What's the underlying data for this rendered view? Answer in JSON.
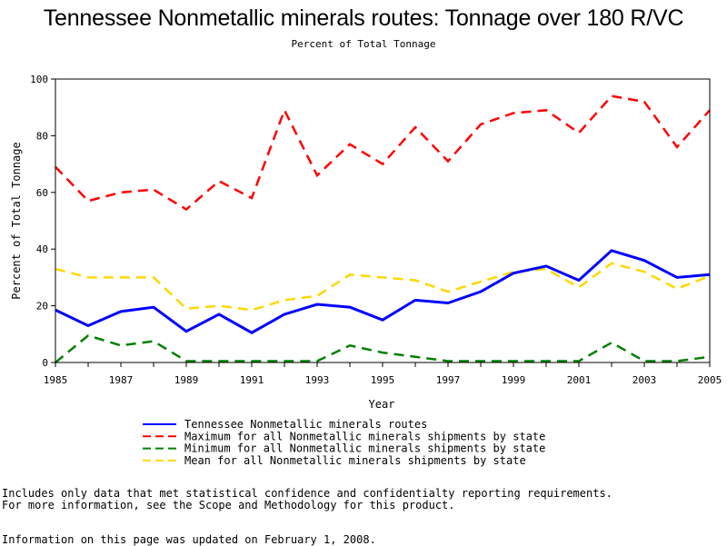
{
  "chart_data": {
    "type": "line",
    "title": "Tennessee Nonmetallic minerals routes: Tonnage over 180 R/VC",
    "subtitle": "Percent of Total Tonnage",
    "xlabel": "Year",
    "ylabel": "Percent of Total Tonnage",
    "x": [
      1985,
      1986,
      1987,
      1988,
      1989,
      1990,
      1991,
      1992,
      1993,
      1994,
      1995,
      1996,
      1997,
      1998,
      1999,
      2000,
      2001,
      2002,
      2003,
      2004,
      2005
    ],
    "xticks": [
      "1985",
      "1987",
      "1989",
      "1991",
      "1993",
      "1995",
      "1997",
      "1999",
      "2001",
      "2003",
      "2005"
    ],
    "yticks": [
      "0",
      "20",
      "40",
      "60",
      "80",
      "100"
    ],
    "xlim": [
      1985,
      2005
    ],
    "ylim": [
      0,
      100
    ],
    "grid": false,
    "legend_position": "bottom",
    "series": [
      {
        "name": "Tennessee Nonmetallic minerals routes",
        "color": "#0000ff",
        "style": "solid",
        "values": [
          18.5,
          13,
          18,
          19.5,
          11,
          17,
          10.5,
          17,
          20.5,
          19.5,
          15,
          22,
          21,
          25,
          31.5,
          34,
          29,
          39.5,
          36,
          30,
          31
        ]
      },
      {
        "name": "Maximum for all Nonmetallic minerals shipments by state",
        "color": "#ff0000",
        "style": "dashed",
        "values": [
          69,
          57,
          60,
          61,
          54,
          64,
          58,
          89,
          66,
          77,
          70,
          83,
          71,
          84,
          88,
          89,
          81,
          94,
          92,
          76,
          89
        ]
      },
      {
        "name": "Minimum for all Nonmetallic minerals shipments by state",
        "color": "#008000",
        "style": "dashed",
        "values": [
          0,
          9.5,
          6,
          7.5,
          0.5,
          0.5,
          0.5,
          0.5,
          0.5,
          6,
          3.5,
          2,
          0.5,
          0.5,
          0.5,
          0.5,
          0.5,
          7,
          0.5,
          0.5,
          2
        ]
      },
      {
        "name": "Mean for all Nonmetallic minerals shipments by state",
        "color": "#ffd700",
        "style": "dashed",
        "values": [
          33,
          30,
          30,
          30,
          19,
          20,
          18.5,
          22,
          23.5,
          31,
          30,
          29,
          25,
          28.5,
          32,
          33,
          26.5,
          35,
          32,
          26,
          30.5
        ]
      }
    ]
  },
  "footnotes": {
    "line1": "Includes only data that met statistical confidence and confidentialty reporting requirements.",
    "line2": "For more information, see the Scope and Methodology for this product.",
    "line3": "Information on this page was updated on February 1, 2008."
  }
}
